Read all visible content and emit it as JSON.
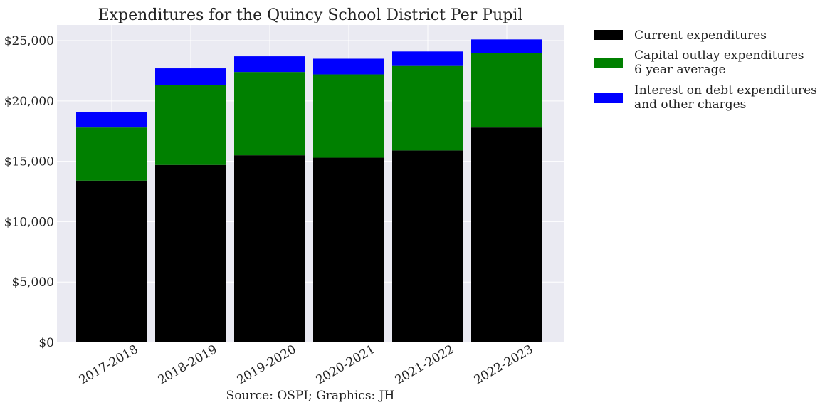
{
  "chart_data": {
    "type": "bar",
    "stacked": true,
    "title": "Expenditures for the Quincy School District Per Pupil",
    "subtitle": "",
    "xlabel": "",
    "ylabel": "",
    "caption": "Source: OSPI; Graphics: JH",
    "categories": [
      "2017-2018",
      "2018-2019",
      "2019-2020",
      "2020-2021",
      "2021-2022",
      "2022-2023"
    ],
    "series": [
      {
        "name": "Current expenditures",
        "label_lines": [
          "Current expenditures"
        ],
        "color": "#000000",
        "values": [
          13400,
          14700,
          15500,
          15300,
          15900,
          17800
        ]
      },
      {
        "name": "Capital outlay expenditures 6 year average",
        "label_lines": [
          "Capital outlay expenditures",
          "6 year average"
        ],
        "color": "#008000",
        "values": [
          4400,
          6600,
          6900,
          6900,
          7000,
          6200
        ]
      },
      {
        "name": "Interest on debt expenditures and other charges",
        "label_lines": [
          "Interest on debt expenditures",
          "and other charges"
        ],
        "color": "#0000ff",
        "values": [
          1300,
          1400,
          1300,
          1300,
          1200,
          1100
        ]
      }
    ],
    "ylim": [
      0,
      26300
    ],
    "yticks": [
      0,
      5000,
      10000,
      15000,
      20000,
      25000
    ],
    "ytick_labels": [
      "$0",
      "$5,000",
      "$10,000",
      "$15,000",
      "$20,000",
      "$25,000"
    ],
    "grid": true,
    "legend_position": "outside-top-right",
    "colors": {
      "plot_background": "#eaeaf2",
      "grid": "#ffffff"
    }
  }
}
